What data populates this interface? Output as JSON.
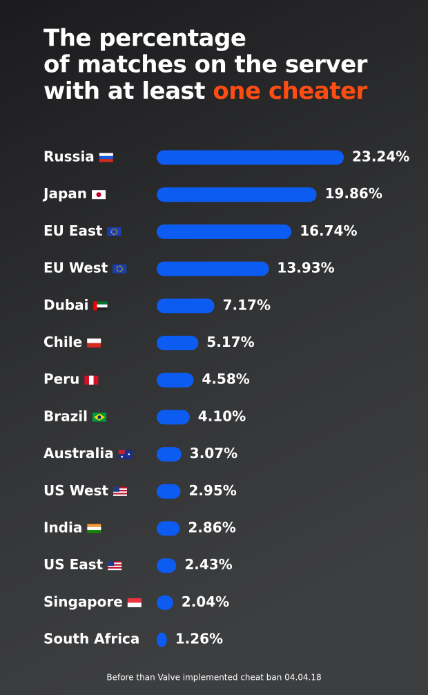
{
  "chart_data": {
    "type": "bar",
    "orientation": "horizontal",
    "title_lines": [
      "The percentage",
      "of matches on the server",
      "with at least"
    ],
    "title_highlight": "one cheater",
    "categories": [
      "Russia",
      "Japan",
      "EU East",
      "EU West",
      "Dubai",
      "Chile",
      "Peru",
      "Brazil",
      "Australia",
      "US West",
      "India",
      "US East",
      "Singapore",
      "South Africa"
    ],
    "values": [
      23.24,
      19.86,
      16.74,
      13.93,
      7.17,
      5.17,
      4.58,
      4.1,
      3.07,
      2.95,
      2.86,
      2.43,
      2.04,
      1.26
    ],
    "value_labels": [
      "23.24%",
      "19.86%",
      "16.74%",
      "13.93%",
      "7.17%",
      "5.17%",
      "4.58%",
      "4.10%",
      "3.07%",
      "2.95%",
      "2.86%",
      "2.43%",
      "2.04%",
      "1.26%"
    ],
    "color": "#0d5cf2",
    "note": "Before than Valve implemented cheat ban 04.04.18"
  }
}
